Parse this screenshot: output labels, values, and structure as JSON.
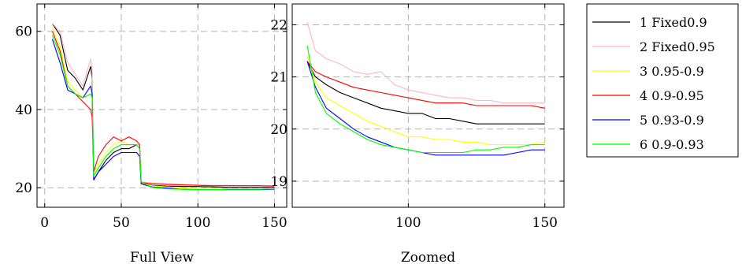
{
  "chart_data": [
    {
      "type": "line",
      "xlabel": "Full View",
      "ylabel": "",
      "xlim": [
        -5,
        158
      ],
      "ylim": [
        15,
        67
      ],
      "xticks": [
        0,
        50,
        100,
        150
      ],
      "yticks": [
        20,
        40,
        60
      ],
      "grid": true,
      "series": [
        {
          "name": "1 Fixed0.9",
          "color": "#000000",
          "x": [
            5,
            10,
            15,
            20,
            25,
            30,
            31,
            32,
            35,
            40,
            45,
            50,
            55,
            60,
            62,
            63,
            70,
            80,
            90,
            100,
            110,
            120,
            130,
            140,
            150
          ],
          "y": [
            62,
            59,
            50,
            48,
            45,
            51,
            48,
            22,
            24,
            27,
            29,
            30,
            30,
            31,
            30,
            21,
            20.6,
            20.4,
            20.3,
            20.3,
            20.2,
            20.1,
            20.1,
            20.1,
            20.1
          ]
        },
        {
          "name": "2 Fixed0.95",
          "color": "#ffb6c1",
          "x": [
            5,
            10,
            15,
            20,
            25,
            30,
            31,
            32,
            35,
            40,
            45,
            50,
            55,
            60,
            62,
            63,
            70,
            80,
            90,
            100,
            110,
            120,
            130,
            140,
            150
          ],
          "y": [
            62,
            60,
            52,
            49,
            46,
            53,
            50,
            23,
            25,
            28,
            30,
            31,
            31,
            31,
            31,
            21.5,
            21.2,
            21.1,
            20.9,
            20.7,
            20.6,
            20.6,
            20.5,
            20.5,
            20.5
          ]
        },
        {
          "name": "3 0.95-0.9",
          "color": "#ffff00",
          "x": [
            5,
            10,
            15,
            20,
            25,
            30,
            31,
            32,
            35,
            40,
            45,
            50,
            55,
            60,
            62,
            63,
            70,
            80,
            90,
            100,
            110,
            120,
            130,
            140,
            150
          ],
          "y": [
            61,
            56,
            47,
            45,
            43,
            44,
            43,
            23,
            26,
            29,
            31,
            32,
            31,
            31,
            30,
            21,
            20.5,
            20.2,
            19.9,
            19.8,
            19.8,
            19.7,
            19.7,
            19.7,
            19.7
          ]
        },
        {
          "name": "4 0.9-0.95",
          "color": "#ff0000",
          "x": [
            5,
            10,
            15,
            20,
            25,
            30,
            31,
            32,
            35,
            40,
            45,
            50,
            55,
            60,
            62,
            63,
            70,
            80,
            90,
            100,
            110,
            120,
            130,
            140,
            150
          ],
          "y": [
            60,
            55,
            46,
            44,
            42,
            40,
            38,
            24,
            28,
            31,
            33,
            32,
            33,
            32,
            31,
            21.3,
            21,
            20.8,
            20.7,
            20.6,
            20.5,
            20.5,
            20.5,
            20.5,
            20.4
          ]
        },
        {
          "name": "5 0.93-0.9",
          "color": "#0000ff",
          "x": [
            5,
            10,
            15,
            20,
            25,
            30,
            31,
            32,
            35,
            40,
            45,
            50,
            55,
            60,
            62,
            63,
            70,
            80,
            90,
            100,
            110,
            120,
            130,
            140,
            150
          ],
          "y": [
            58,
            52,
            45,
            44,
            43,
            46,
            44,
            22,
            24,
            26,
            28,
            29,
            29,
            29,
            28,
            21,
            20.2,
            19.9,
            19.6,
            19.5,
            19.5,
            19.5,
            19.5,
            19.5,
            19.6
          ]
        },
        {
          "name": "6 0.9-0.93",
          "color": "#00ff00",
          "x": [
            5,
            10,
            15,
            20,
            25,
            30,
            31,
            32,
            35,
            40,
            45,
            50,
            55,
            60,
            62,
            63,
            70,
            80,
            90,
            100,
            110,
            120,
            130,
            140,
            150
          ],
          "y": [
            59,
            54,
            46,
            44,
            43,
            44,
            43,
            23,
            25,
            28,
            30,
            31,
            31,
            31,
            30,
            21.5,
            20.1,
            19.7,
            19.6,
            19.5,
            19.5,
            19.6,
            19.6,
            19.6,
            19.7
          ]
        }
      ]
    },
    {
      "type": "line",
      "xlabel": "Zoomed",
      "ylabel": "",
      "xlim": [
        57.5,
        157
      ],
      "ylim": [
        18.5,
        22.4
      ],
      "xticks": [
        100,
        150
      ],
      "yticks": [
        19,
        20,
        21,
        22
      ],
      "grid": true,
      "series": [
        {
          "name": "1 Fixed0.9",
          "color": "#000000",
          "x": [
            63,
            66,
            70,
            75,
            80,
            85,
            90,
            95,
            100,
            105,
            110,
            115,
            120,
            125,
            130,
            135,
            140,
            145,
            150
          ],
          "y": [
            21.3,
            21.0,
            20.85,
            20.7,
            20.6,
            20.5,
            20.4,
            20.35,
            20.3,
            20.3,
            20.2,
            20.2,
            20.15,
            20.1,
            20.1,
            20.1,
            20.1,
            20.1,
            20.1
          ]
        },
        {
          "name": "2 Fixed0.95",
          "color": "#ffb6c1",
          "x": [
            63,
            66,
            70,
            75,
            80,
            85,
            90,
            95,
            100,
            105,
            110,
            115,
            120,
            125,
            130,
            135,
            140,
            145,
            150
          ],
          "y": [
            22.05,
            21.5,
            21.35,
            21.25,
            21.1,
            21.05,
            21.1,
            20.85,
            20.75,
            20.7,
            20.65,
            20.6,
            20.6,
            20.55,
            20.55,
            20.5,
            20.5,
            20.5,
            20.5
          ]
        },
        {
          "name": "3 0.95-0.9",
          "color": "#ffff00",
          "x": [
            63,
            66,
            70,
            75,
            80,
            85,
            90,
            95,
            100,
            105,
            110,
            115,
            120,
            125,
            130,
            135,
            140,
            145,
            150
          ],
          "y": [
            21.4,
            20.9,
            20.6,
            20.45,
            20.3,
            20.15,
            20.05,
            19.95,
            19.85,
            19.85,
            19.8,
            19.8,
            19.75,
            19.75,
            19.7,
            19.7,
            19.7,
            19.7,
            19.75
          ]
        },
        {
          "name": "4 0.9-0.95",
          "color": "#ff0000",
          "x": [
            63,
            66,
            70,
            75,
            80,
            85,
            90,
            95,
            100,
            105,
            110,
            115,
            120,
            125,
            130,
            135,
            140,
            145,
            150
          ],
          "y": [
            21.3,
            21.1,
            21.0,
            20.9,
            20.8,
            20.75,
            20.7,
            20.65,
            20.6,
            20.55,
            20.5,
            20.5,
            20.5,
            20.45,
            20.45,
            20.45,
            20.45,
            20.45,
            20.4
          ]
        },
        {
          "name": "5 0.93-0.9",
          "color": "#0000ff",
          "x": [
            63,
            66,
            70,
            75,
            80,
            85,
            90,
            95,
            100,
            105,
            110,
            115,
            120,
            125,
            130,
            135,
            140,
            145,
            150
          ],
          "y": [
            21.3,
            20.8,
            20.4,
            20.2,
            20.0,
            19.85,
            19.75,
            19.65,
            19.6,
            19.55,
            19.5,
            19.5,
            19.5,
            19.5,
            19.5,
            19.5,
            19.55,
            19.6,
            19.6
          ]
        },
        {
          "name": "6 0.9-0.93",
          "color": "#00ff00",
          "x": [
            63,
            66,
            70,
            75,
            80,
            85,
            90,
            95,
            100,
            105,
            110,
            115,
            120,
            125,
            130,
            135,
            140,
            145,
            150
          ],
          "y": [
            21.6,
            20.7,
            20.3,
            20.1,
            19.95,
            19.8,
            19.7,
            19.65,
            19.6,
            19.55,
            19.55,
            19.55,
            19.55,
            19.6,
            19.6,
            19.65,
            19.65,
            19.7,
            19.7
          ]
        }
      ]
    }
  ],
  "legend": {
    "placement": "right",
    "entries": [
      {
        "label": "1 Fixed0.9",
        "color": "#000000"
      },
      {
        "label": "2 Fixed0.95",
        "color": "#ffb6c1"
      },
      {
        "label": "3 0.95-0.9",
        "color": "#ffff00"
      },
      {
        "label": "4 0.9-0.95",
        "color": "#ff0000"
      },
      {
        "label": "5 0.93-0.9",
        "color": "#0000ff"
      },
      {
        "label": "6 0.9-0.93",
        "color": "#00ff00"
      }
    ]
  }
}
